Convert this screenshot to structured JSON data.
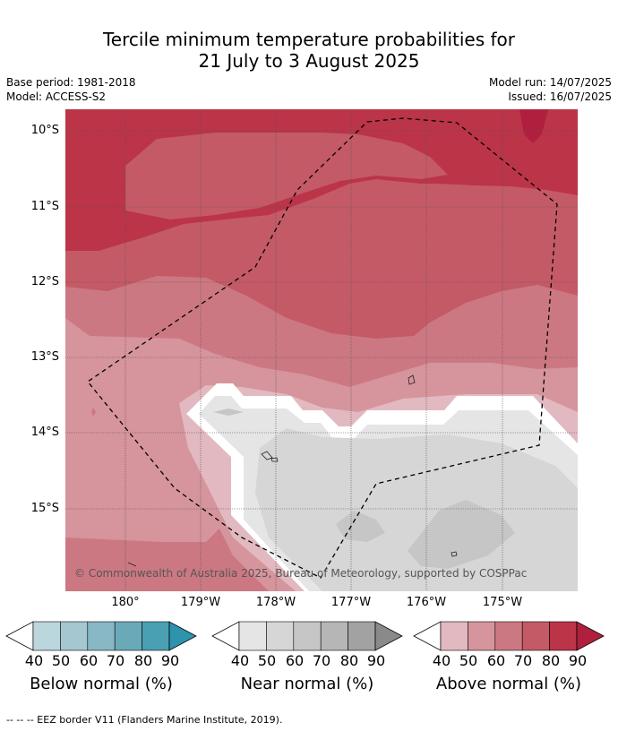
{
  "title_line1": "Tercile minimum temperature probabilities for",
  "title_line2": "21 July to 3 August 2025",
  "base_period": "Base period: 1981-2018",
  "model": "Model: ACCESS-S2",
  "model_run": "Model run: 14/07/2025",
  "issued": "Issued: 16/07/2025",
  "lat_labels": [
    "10°S",
    "11°S",
    "12°S",
    "13°S",
    "14°S",
    "15°S"
  ],
  "lon_labels": [
    "180°",
    "179°W",
    "178°W",
    "177°W",
    "176°W",
    "175°W"
  ],
  "copyright": "© Commonwealth of Australia 2025, Bureau of Meteorology, supported by COSPPac",
  "colorbars": [
    {
      "label": "Below normal (%)",
      "ticks": [
        "40",
        "50",
        "60",
        "70",
        "80",
        "90"
      ],
      "colors": [
        "#bcd6de",
        "#a5c7cf",
        "#88b8c5",
        "#6aaab8",
        "#48a0b2",
        "#2e93ac"
      ]
    },
    {
      "label": "Near normal (%)",
      "ticks": [
        "40",
        "50",
        "60",
        "70",
        "80",
        "90"
      ],
      "colors": [
        "#e5e5e5",
        "#d6d6d6",
        "#c6c6c6",
        "#b6b6b6",
        "#a2a2a2",
        "#8a8a8a"
      ]
    },
    {
      "label": "Above normal (%)",
      "ticks": [
        "40",
        "50",
        "60",
        "70",
        "80",
        "90"
      ],
      "colors": [
        "#e2b9c0",
        "#d6949c",
        "#cc7882",
        "#c45a66",
        "#bb3448",
        "#b0203e"
      ]
    }
  ],
  "footnote": "--  --  -- EEZ border V11 (Flanders Marine Institute, 2019)."
}
